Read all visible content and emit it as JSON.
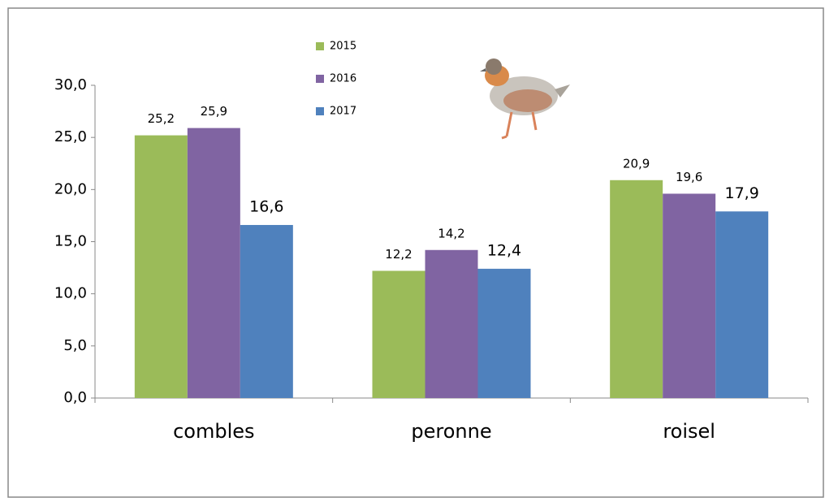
{
  "chart_data": {
    "type": "bar",
    "categories": [
      "combles",
      "peronne",
      "roisel"
    ],
    "series": [
      {
        "name": "2015",
        "color": "#9bbb59",
        "values": [
          25.2,
          12.2,
          20.9
        ],
        "value_labels": [
          "25,2",
          "12,2",
          "20,9"
        ]
      },
      {
        "name": "2016",
        "color": "#8064a2",
        "values": [
          25.9,
          14.2,
          19.6
        ],
        "value_labels": [
          "25,9",
          "14,2",
          "19,6"
        ]
      },
      {
        "name": "2017",
        "color": "#4f81bd",
        "values": [
          16.6,
          12.4,
          17.9
        ],
        "value_labels": [
          "16,6",
          "12,4",
          "17,9"
        ]
      }
    ],
    "ylim": [
      0,
      30
    ],
    "yticks": [
      {
        "value": 0,
        "label": "0,0"
      },
      {
        "value": 5,
        "label": "5,0"
      },
      {
        "value": 10,
        "label": "10,0"
      },
      {
        "value": 15,
        "label": "15,0"
      },
      {
        "value": 20,
        "label": "20,0"
      },
      {
        "value": 25,
        "label": "25,0"
      },
      {
        "value": 30,
        "label": "30,0"
      }
    ],
    "grid": false,
    "legend": "top"
  }
}
